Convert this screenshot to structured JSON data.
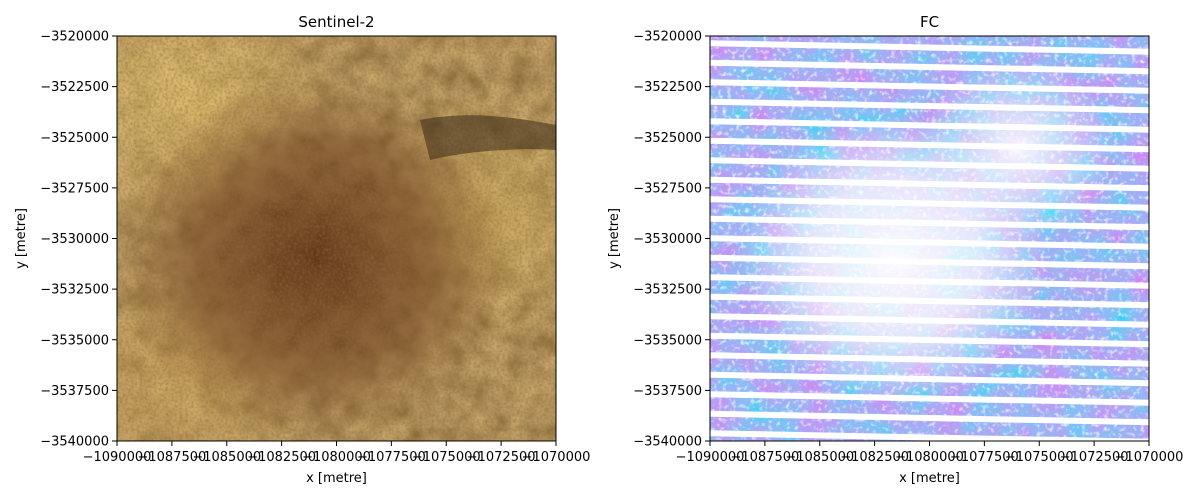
{
  "panels": [
    {
      "title": "Sentinel-2",
      "xlabel": "x [metre]",
      "ylabel": "y [metre]",
      "imagery": "true-colour-arid-terrain"
    },
    {
      "title": "FC",
      "xlabel": "x [metre]",
      "ylabel": "y [metre]",
      "imagery": "fractional-cover-striped"
    }
  ],
  "x_ticks": [
    "−1090000",
    "−1087500",
    "−1085000",
    "−1082500",
    "−1080000",
    "−1077500",
    "−1075000",
    "−1072500",
    "−1070000"
  ],
  "y_ticks": [
    "−3520000",
    "−3522500",
    "−3525000",
    "−3527500",
    "−3530000",
    "−3532500",
    "−3535000",
    "−3537500",
    "−3540000"
  ],
  "xlim": [
    -1090000,
    -1070000
  ],
  "ylim": [
    -3540000,
    -3520000
  ],
  "colors": {
    "s2_dark": "#6b3a1a",
    "s2_mid": "#8a5a2a",
    "s2_light": "#d8b860",
    "fc_cyan": "#2ab0e0",
    "fc_blue": "#4a78e8",
    "fc_violet": "#7a5ae8"
  }
}
